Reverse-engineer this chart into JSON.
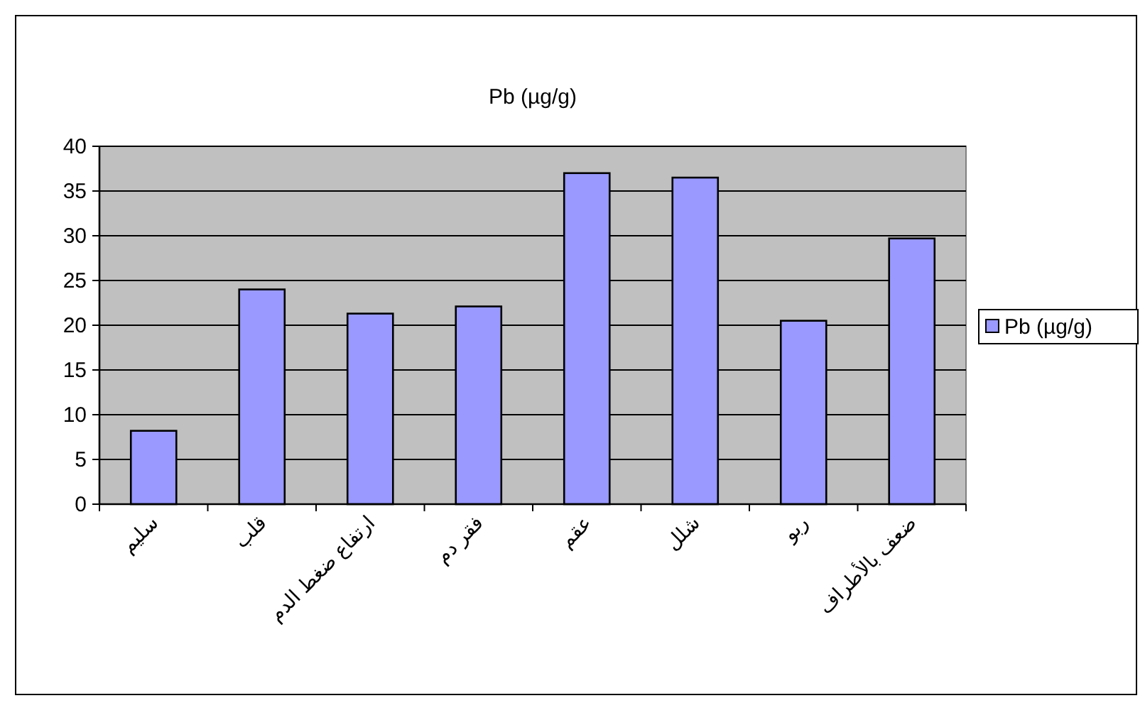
{
  "chart_data": {
    "type": "bar",
    "title": "Pb (µg/g)",
    "categories": [
      "سليم",
      "قلب",
      "ارتفاع ضغط الدم",
      "فقر دم",
      "عقم",
      "شلل",
      "ربو",
      "ضعف بالأطراف"
    ],
    "series": [
      {
        "name": "Pb (µg/g)",
        "color": "#9999ff",
        "values": [
          8.2,
          24,
          21.3,
          22.1,
          37,
          36.5,
          20.5,
          29.7
        ]
      }
    ],
    "ylim": [
      0,
      40
    ],
    "yticks": [
      0,
      5,
      10,
      15,
      20,
      25,
      30,
      35,
      40
    ],
    "grid": "y",
    "legend": "right"
  }
}
